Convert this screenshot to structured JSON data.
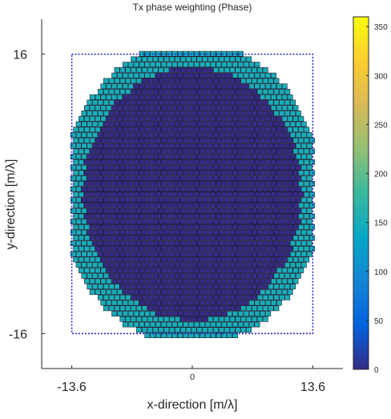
{
  "chart_data": {
    "type": "heatmap",
    "title": "Tx phase weighting (Phase)",
    "xlabel": "x-direction [m/λ]",
    "ylabel": "y-direction [m/λ]",
    "xlim": [
      -17,
      17
    ],
    "ylim": [
      -20,
      20
    ],
    "x_ticks": [
      {
        "value": -13.6,
        "label": "-13.6"
      },
      {
        "value": 0,
        "label": "0"
      },
      {
        "value": 13.6,
        "label": "13.6"
      }
    ],
    "y_ticks": [
      {
        "value": 16,
        "label": "16"
      },
      {
        "value": -16,
        "label": "-16"
      }
    ],
    "aperture_bounds": {
      "x": [
        -13.6,
        13.6
      ],
      "y": [
        -16,
        16
      ]
    },
    "grid": false,
    "colorbar": {
      "colormap": "parula",
      "range": [
        0,
        360
      ],
      "ticks": [
        0,
        50,
        100,
        150,
        200,
        250,
        300,
        350
      ],
      "labels": [
        "0",
        "50",
        "100",
        "150",
        "200",
        "250",
        "300",
        "350"
      ]
    },
    "elements": {
      "shape": "circular",
      "outer_radius": 14.8,
      "inner_region": {
        "shape": "circular",
        "radius": 12.3,
        "phase_deg": 0
      },
      "outer_ring": {
        "phase_deg": 150
      }
    }
  },
  "colors": {
    "axis": "#262626",
    "aperture_box": "#1f1fd1",
    "element_edge": "#1e1e2e",
    "colormap_stops": [
      "#352a87",
      "#0363e1",
      "#1485d4",
      "#06a7c6",
      "#38b99e",
      "#92bf73",
      "#d9ba56",
      "#fcce2e",
      "#f9fb0e"
    ]
  }
}
